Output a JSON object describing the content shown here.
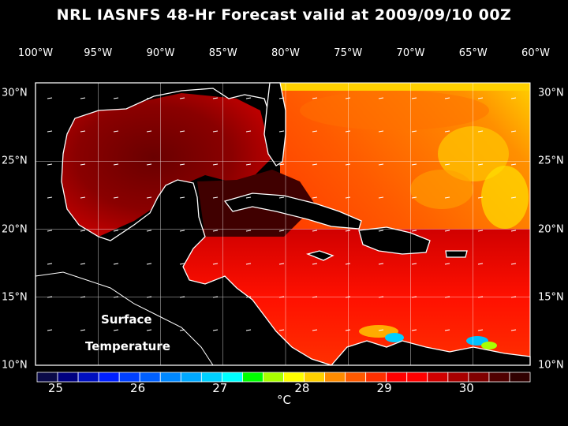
{
  "title": "NRL IASNFS  48-Hr Forecast valid at 2009/09/10 00Z",
  "map": {
    "lon_labels": [
      "100°W",
      "95°W",
      "90°W",
      "85°W",
      "80°W",
      "75°W",
      "70°W",
      "65°W",
      "60°W"
    ],
    "lat_labels": [
      "30°N",
      "25°N",
      "20°N",
      "15°N",
      "10°N"
    ],
    "field_label_line1": "Surface",
    "field_label_line2": "Temperature",
    "extent": {
      "lon": [
        -100,
        -60
      ],
      "lat": [
        10,
        31
      ]
    }
  },
  "colorbar": {
    "ticks": [
      "25",
      "26",
      "27",
      "28",
      "29",
      "30"
    ],
    "unit": "°C",
    "range": [
      25,
      31
    ],
    "colors": [
      "#0a0a48",
      "#000080",
      "#0010c0",
      "#0020ff",
      "#0040ff",
      "#0060ff",
      "#0088ff",
      "#00a8ff",
      "#00d0ff",
      "#00ffff",
      "#00ff00",
      "#a8ff00",
      "#ffff00",
      "#ffd000",
      "#ff8c00",
      "#ff5a00",
      "#ff3000",
      "#ff0000",
      "#ff0000",
      "#d00000",
      "#a80000",
      "#800000",
      "#500000",
      "#300000"
    ]
  }
}
